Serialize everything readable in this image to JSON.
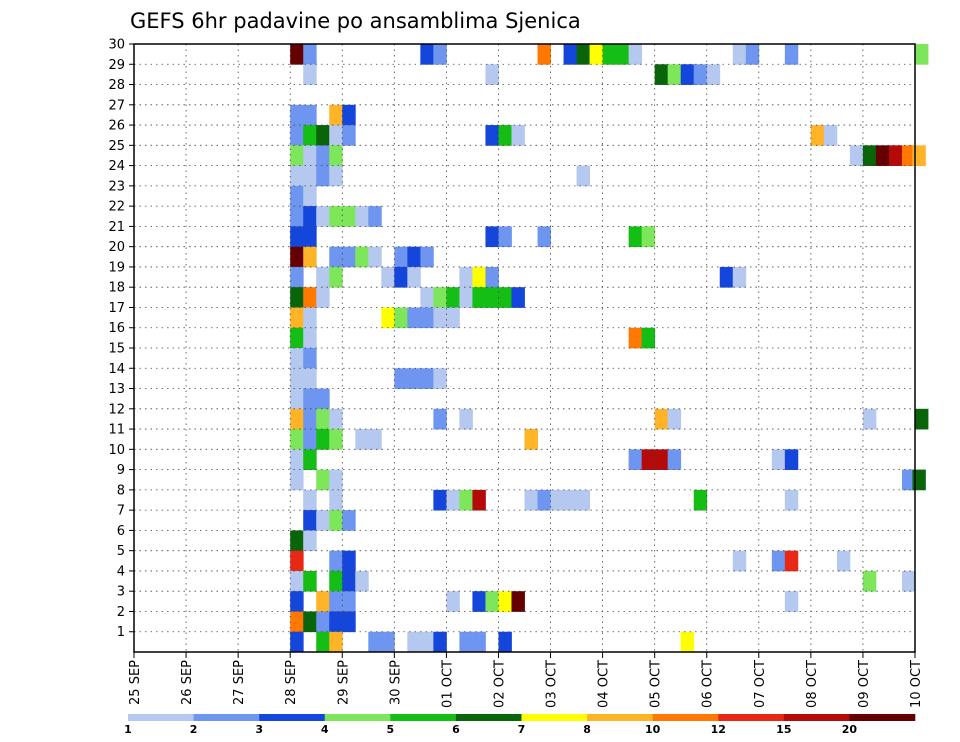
{
  "chart_data": {
    "type": "heatmap",
    "title": "GEFS 6hr padavine po ansamblima Sjenica",
    "xlabel": "",
    "ylabel": "",
    "x_tick_labels": [
      "25 SEP",
      "26 SEP",
      "27 SEP",
      "28 SEP",
      "29 SEP",
      "30 SEP",
      "01 OCT",
      "02 OCT",
      "03 OCT",
      "04 OCT",
      "05 OCT",
      "06 OCT",
      "07 OCT",
      "08 OCT",
      "09 OCT",
      "10 OCT"
    ],
    "y_tick_labels": [
      "1",
      "2",
      "3",
      "4",
      "5",
      "6",
      "7",
      "8",
      "9",
      "10",
      "11",
      "12",
      "13",
      "14",
      "15",
      "16",
      "17",
      "18",
      "19",
      "20",
      "21",
      "22",
      "23",
      "24",
      "25",
      "26",
      "27",
      "28",
      "29",
      "30"
    ],
    "ylim": [
      0,
      30
    ],
    "x_unit": "days since 25 SEP, 6-hourly steps",
    "grid": true,
    "colorbar": {
      "tick_labels": [
        "1",
        "2",
        "3",
        "4",
        "5",
        "6",
        "7",
        "8",
        "10",
        "12",
        "15",
        "20"
      ],
      "levels": [
        1,
        2,
        3,
        4,
        5,
        6,
        7,
        8,
        10,
        12,
        15,
        20
      ],
      "colors": [
        "#b4c8f0",
        "#6e96f0",
        "#1446dc",
        "#7ee65a",
        "#14be14",
        "#0a640a",
        "#ffff00",
        "#ffb428",
        "#ff7800",
        "#e62814",
        "#b40a0a",
        "#640000"
      ]
    },
    "cells": [
      {
        "x": 3.0,
        "y": 30,
        "level": 11
      },
      {
        "x": 3.25,
        "y": 30,
        "level": 1
      },
      {
        "x": 5.5,
        "y": 30,
        "level": 2
      },
      {
        "x": 5.75,
        "y": 30,
        "level": 1
      },
      {
        "x": 7.75,
        "y": 30,
        "level": 8
      },
      {
        "x": 8.25,
        "y": 30,
        "level": 2
      },
      {
        "x": 8.5,
        "y": 30,
        "level": 5
      },
      {
        "x": 8.75,
        "y": 30,
        "level": 6
      },
      {
        "x": 9.0,
        "y": 30,
        "level": 4
      },
      {
        "x": 9.25,
        "y": 30,
        "level": 4
      },
      {
        "x": 9.5,
        "y": 30,
        "level": 0
      },
      {
        "x": 11.5,
        "y": 30,
        "level": 0
      },
      {
        "x": 11.75,
        "y": 30,
        "level": 1
      },
      {
        "x": 12.5,
        "y": 30,
        "level": 1
      },
      {
        "x": 15.0,
        "y": 30,
        "level": 3
      },
      {
        "x": 3.25,
        "y": 29,
        "level": 0
      },
      {
        "x": 6.75,
        "y": 29,
        "level": 0
      },
      {
        "x": 10.0,
        "y": 29,
        "level": 5
      },
      {
        "x": 10.25,
        "y": 29,
        "level": 3
      },
      {
        "x": 10.5,
        "y": 29,
        "level": 2
      },
      {
        "x": 10.75,
        "y": 29,
        "level": 1
      },
      {
        "x": 11.0,
        "y": 29,
        "level": 0
      },
      {
        "x": 3.0,
        "y": 27,
        "level": 1
      },
      {
        "x": 3.25,
        "y": 27,
        "level": 1
      },
      {
        "x": 3.75,
        "y": 27,
        "level": 7
      },
      {
        "x": 4.0,
        "y": 27,
        "level": 2
      },
      {
        "x": 3.0,
        "y": 26,
        "level": 1
      },
      {
        "x": 3.25,
        "y": 26,
        "level": 4
      },
      {
        "x": 3.5,
        "y": 26,
        "level": 5
      },
      {
        "x": 3.75,
        "y": 26,
        "level": 0
      },
      {
        "x": 4.0,
        "y": 26,
        "level": 1
      },
      {
        "x": 6.75,
        "y": 26,
        "level": 2
      },
      {
        "x": 7.0,
        "y": 26,
        "level": 4
      },
      {
        "x": 7.25,
        "y": 26,
        "level": 0
      },
      {
        "x": 13.0,
        "y": 26,
        "level": 7
      },
      {
        "x": 13.25,
        "y": 26,
        "level": 0
      },
      {
        "x": 3.0,
        "y": 25,
        "level": 3
      },
      {
        "x": 3.25,
        "y": 25,
        "level": 0
      },
      {
        "x": 3.5,
        "y": 25,
        "level": 1
      },
      {
        "x": 3.75,
        "y": 25,
        "level": 3
      },
      {
        "x": 13.75,
        "y": 25,
        "level": 0
      },
      {
        "x": 14.0,
        "y": 25,
        "level": 5
      },
      {
        "x": 14.25,
        "y": 25,
        "level": 11
      },
      {
        "x": 14.5,
        "y": 25,
        "level": 10
      },
      {
        "x": 14.75,
        "y": 25,
        "level": 8
      },
      {
        "x": 14.95,
        "y": 25,
        "level": 7
      },
      {
        "x": 3.0,
        "y": 24,
        "level": 0
      },
      {
        "x": 3.25,
        "y": 24,
        "level": 0
      },
      {
        "x": 3.5,
        "y": 24,
        "level": 1
      },
      {
        "x": 3.75,
        "y": 24,
        "level": 0
      },
      {
        "x": 8.5,
        "y": 24,
        "level": 0
      },
      {
        "x": 3.0,
        "y": 23,
        "level": 1
      },
      {
        "x": 3.25,
        "y": 23,
        "level": 0
      },
      {
        "x": 3.0,
        "y": 22,
        "level": 1
      },
      {
        "x": 3.25,
        "y": 22,
        "level": 2
      },
      {
        "x": 3.5,
        "y": 22,
        "level": 0
      },
      {
        "x": 3.75,
        "y": 22,
        "level": 3
      },
      {
        "x": 4.0,
        "y": 22,
        "level": 3
      },
      {
        "x": 4.25,
        "y": 22,
        "level": 0
      },
      {
        "x": 4.5,
        "y": 22,
        "level": 1
      },
      {
        "x": 3.0,
        "y": 21,
        "level": 2
      },
      {
        "x": 3.25,
        "y": 21,
        "level": 2
      },
      {
        "x": 6.75,
        "y": 21,
        "level": 2
      },
      {
        "x": 7.0,
        "y": 21,
        "level": 1
      },
      {
        "x": 7.75,
        "y": 21,
        "level": 1
      },
      {
        "x": 9.5,
        "y": 21,
        "level": 4
      },
      {
        "x": 9.75,
        "y": 21,
        "level": 3
      },
      {
        "x": 3.0,
        "y": 20,
        "level": 11
      },
      {
        "x": 3.25,
        "y": 20,
        "level": 7
      },
      {
        "x": 3.75,
        "y": 20,
        "level": 1
      },
      {
        "x": 4.0,
        "y": 20,
        "level": 1
      },
      {
        "x": 4.25,
        "y": 20,
        "level": 3
      },
      {
        "x": 4.5,
        "y": 20,
        "level": 0
      },
      {
        "x": 5.0,
        "y": 20,
        "level": 1
      },
      {
        "x": 5.25,
        "y": 20,
        "level": 2
      },
      {
        "x": 5.5,
        "y": 20,
        "level": 1
      },
      {
        "x": 3.0,
        "y": 19,
        "level": 1
      },
      {
        "x": 3.5,
        "y": 19,
        "level": 0
      },
      {
        "x": 3.75,
        "y": 19,
        "level": 3
      },
      {
        "x": 4.75,
        "y": 19,
        "level": 0
      },
      {
        "x": 5.0,
        "y": 19,
        "level": 2
      },
      {
        "x": 5.25,
        "y": 19,
        "level": 0
      },
      {
        "x": 6.25,
        "y": 19,
        "level": 0
      },
      {
        "x": 6.5,
        "y": 19,
        "level": 6
      },
      {
        "x": 6.75,
        "y": 19,
        "level": 1
      },
      {
        "x": 11.25,
        "y": 19,
        "level": 2
      },
      {
        "x": 11.5,
        "y": 19,
        "level": 0
      },
      {
        "x": 3.0,
        "y": 18,
        "level": 5
      },
      {
        "x": 3.25,
        "y": 18,
        "level": 8
      },
      {
        "x": 3.5,
        "y": 18,
        "level": 0
      },
      {
        "x": 5.5,
        "y": 18,
        "level": 0
      },
      {
        "x": 5.75,
        "y": 18,
        "level": 3
      },
      {
        "x": 6.0,
        "y": 18,
        "level": 4
      },
      {
        "x": 6.25,
        "y": 18,
        "level": 0
      },
      {
        "x": 6.5,
        "y": 18,
        "level": 4
      },
      {
        "x": 6.75,
        "y": 18,
        "level": 4
      },
      {
        "x": 7.0,
        "y": 18,
        "level": 4
      },
      {
        "x": 7.25,
        "y": 18,
        "level": 2
      },
      {
        "x": 3.0,
        "y": 17,
        "level": 7
      },
      {
        "x": 3.25,
        "y": 17,
        "level": 0
      },
      {
        "x": 4.75,
        "y": 17,
        "level": 6
      },
      {
        "x": 5.0,
        "y": 17,
        "level": 3
      },
      {
        "x": 5.25,
        "y": 17,
        "level": 1
      },
      {
        "x": 5.5,
        "y": 17,
        "level": 1
      },
      {
        "x": 5.75,
        "y": 17,
        "level": 0
      },
      {
        "x": 6.0,
        "y": 17,
        "level": 0
      },
      {
        "x": 3.0,
        "y": 16,
        "level": 4
      },
      {
        "x": 3.25,
        "y": 16,
        "level": 0
      },
      {
        "x": 9.5,
        "y": 16,
        "level": 8
      },
      {
        "x": 9.75,
        "y": 16,
        "level": 4
      },
      {
        "x": 3.0,
        "y": 15,
        "level": 0
      },
      {
        "x": 3.25,
        "y": 15,
        "level": 1
      },
      {
        "x": 3.0,
        "y": 14,
        "level": 0
      },
      {
        "x": 3.25,
        "y": 14,
        "level": 0
      },
      {
        "x": 5.0,
        "y": 14,
        "level": 1
      },
      {
        "x": 5.25,
        "y": 14,
        "level": 1
      },
      {
        "x": 5.5,
        "y": 14,
        "level": 1
      },
      {
        "x": 5.75,
        "y": 14,
        "level": 0
      },
      {
        "x": 3.0,
        "y": 13,
        "level": 0
      },
      {
        "x": 3.25,
        "y": 13,
        "level": 1
      },
      {
        "x": 3.5,
        "y": 13,
        "level": 1
      },
      {
        "x": 3.0,
        "y": 12,
        "level": 7
      },
      {
        "x": 3.25,
        "y": 12,
        "level": 1
      },
      {
        "x": 3.5,
        "y": 12,
        "level": 3
      },
      {
        "x": 3.75,
        "y": 12,
        "level": 0
      },
      {
        "x": 5.75,
        "y": 12,
        "level": 1
      },
      {
        "x": 6.25,
        "y": 12,
        "level": 0
      },
      {
        "x": 10.0,
        "y": 12,
        "level": 7
      },
      {
        "x": 10.25,
        "y": 12,
        "level": 0
      },
      {
        "x": 14.0,
        "y": 12,
        "level": 0
      },
      {
        "x": 15.0,
        "y": 12,
        "level": 5
      },
      {
        "x": 3.0,
        "y": 11,
        "level": 3
      },
      {
        "x": 3.25,
        "y": 11,
        "level": 1
      },
      {
        "x": 3.5,
        "y": 11,
        "level": 4
      },
      {
        "x": 3.75,
        "y": 11,
        "level": 3
      },
      {
        "x": 4.25,
        "y": 11,
        "level": 0
      },
      {
        "x": 4.5,
        "y": 11,
        "level": 0
      },
      {
        "x": 7.5,
        "y": 11,
        "level": 7
      },
      {
        "x": 3.0,
        "y": 10,
        "level": 0
      },
      {
        "x": 3.25,
        "y": 10,
        "level": 4
      },
      {
        "x": 9.5,
        "y": 10,
        "level": 1
      },
      {
        "x": 9.75,
        "y": 10,
        "level": 10
      },
      {
        "x": 10.0,
        "y": 10,
        "level": 10
      },
      {
        "x": 10.25,
        "y": 10,
        "level": 1
      },
      {
        "x": 12.25,
        "y": 10,
        "level": 0
      },
      {
        "x": 12.5,
        "y": 10,
        "level": 2
      },
      {
        "x": 3.0,
        "y": 9,
        "level": 0
      },
      {
        "x": 3.5,
        "y": 9,
        "level": 3
      },
      {
        "x": 3.75,
        "y": 9,
        "level": 0
      },
      {
        "x": 14.75,
        "y": 9,
        "level": 1
      },
      {
        "x": 14.95,
        "y": 9,
        "level": 5
      },
      {
        "x": 3.25,
        "y": 8,
        "level": 0
      },
      {
        "x": 3.75,
        "y": 8,
        "level": 0
      },
      {
        "x": 5.75,
        "y": 8,
        "level": 2
      },
      {
        "x": 6.0,
        "y": 8,
        "level": 0
      },
      {
        "x": 6.25,
        "y": 8,
        "level": 3
      },
      {
        "x": 6.5,
        "y": 8,
        "level": 10
      },
      {
        "x": 7.5,
        "y": 8,
        "level": 0
      },
      {
        "x": 7.75,
        "y": 8,
        "level": 1
      },
      {
        "x": 8.0,
        "y": 8,
        "level": 0
      },
      {
        "x": 8.25,
        "y": 8,
        "level": 0
      },
      {
        "x": 8.5,
        "y": 8,
        "level": 0
      },
      {
        "x": 10.75,
        "y": 8,
        "level": 4
      },
      {
        "x": 12.5,
        "y": 8,
        "level": 0
      },
      {
        "x": 3.25,
        "y": 7,
        "level": 2
      },
      {
        "x": 3.5,
        "y": 7,
        "level": 0
      },
      {
        "x": 3.75,
        "y": 7,
        "level": 3
      },
      {
        "x": 4.0,
        "y": 7,
        "level": 1
      },
      {
        "x": 3.0,
        "y": 6,
        "level": 5
      },
      {
        "x": 3.25,
        "y": 6,
        "level": 0
      },
      {
        "x": 3.0,
        "y": 5,
        "level": 9
      },
      {
        "x": 3.75,
        "y": 5,
        "level": 1
      },
      {
        "x": 4.0,
        "y": 5,
        "level": 2
      },
      {
        "x": 11.5,
        "y": 5,
        "level": 0
      },
      {
        "x": 12.25,
        "y": 5,
        "level": 1
      },
      {
        "x": 12.5,
        "y": 5,
        "level": 9
      },
      {
        "x": 13.5,
        "y": 5,
        "level": 0
      },
      {
        "x": 3.0,
        "y": 4,
        "level": 0
      },
      {
        "x": 3.25,
        "y": 4,
        "level": 4
      },
      {
        "x": 3.75,
        "y": 4,
        "level": 4
      },
      {
        "x": 4.0,
        "y": 4,
        "level": 2
      },
      {
        "x": 4.25,
        "y": 4,
        "level": 0
      },
      {
        "x": 14.0,
        "y": 4,
        "level": 3
      },
      {
        "x": 14.75,
        "y": 4,
        "level": 0
      },
      {
        "x": 3.0,
        "y": 3,
        "level": 2
      },
      {
        "x": 3.5,
        "y": 3,
        "level": 7
      },
      {
        "x": 3.75,
        "y": 3,
        "level": 1
      },
      {
        "x": 4.0,
        "y": 3,
        "level": 1
      },
      {
        "x": 6.0,
        "y": 3,
        "level": 0
      },
      {
        "x": 6.5,
        "y": 3,
        "level": 2
      },
      {
        "x": 6.75,
        "y": 3,
        "level": 3
      },
      {
        "x": 7.0,
        "y": 3,
        "level": 6
      },
      {
        "x": 7.25,
        "y": 3,
        "level": 11
      },
      {
        "x": 12.5,
        "y": 3,
        "level": 0
      },
      {
        "x": 3.0,
        "y": 2,
        "level": 8
      },
      {
        "x": 3.25,
        "y": 2,
        "level": 5
      },
      {
        "x": 3.5,
        "y": 2,
        "level": 1
      },
      {
        "x": 3.75,
        "y": 2,
        "level": 2
      },
      {
        "x": 4.0,
        "y": 2,
        "level": 2
      },
      {
        "x": 3.0,
        "y": 1,
        "level": 2
      },
      {
        "x": 3.5,
        "y": 1,
        "level": 4
      },
      {
        "x": 3.75,
        "y": 1,
        "level": 7
      },
      {
        "x": 4.5,
        "y": 1,
        "level": 1
      },
      {
        "x": 4.75,
        "y": 1,
        "level": 1
      },
      {
        "x": 5.25,
        "y": 1,
        "level": 0
      },
      {
        "x": 5.5,
        "y": 1,
        "level": 0
      },
      {
        "x": 5.75,
        "y": 1,
        "level": 2
      },
      {
        "x": 6.25,
        "y": 1,
        "level": 1
      },
      {
        "x": 6.5,
        "y": 1,
        "level": 1
      },
      {
        "x": 7.0,
        "y": 1,
        "level": 2
      },
      {
        "x": 10.5,
        "y": 1,
        "level": 6
      }
    ]
  }
}
